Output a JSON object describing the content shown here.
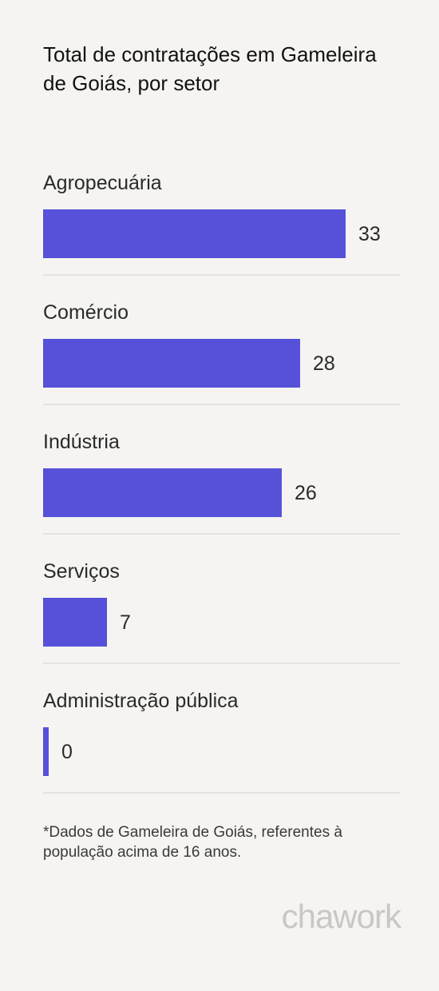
{
  "chart_data": {
    "type": "bar",
    "orientation": "horizontal",
    "title": "Total de contratações em Gameleira de Goiás, por setor",
    "categories": [
      "Agropecuária",
      "Comércio",
      "Indústria",
      "Serviços",
      "Administração pública"
    ],
    "values": [
      33,
      28,
      26,
      7,
      0
    ],
    "xlim": [
      0,
      33
    ],
    "grid": false,
    "legend": "none",
    "bar_color": "#5651d8"
  },
  "footnote": "*Dados de Gameleira de Goiás, referentes à população acima de 16 anos.",
  "brand": "chawork",
  "colors": {
    "background": "#f5f4f2",
    "bar": "#5651d8",
    "divider": "#e4e2df",
    "brand": "#c9c7c2"
  }
}
